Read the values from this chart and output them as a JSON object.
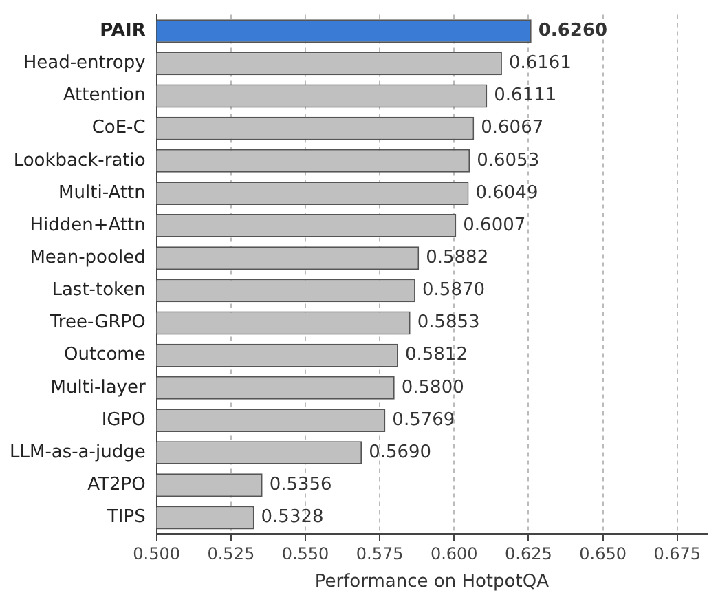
{
  "chart_data": {
    "type": "bar",
    "orientation": "horizontal",
    "xlabel": "Performance on HotpotQA",
    "categories": [
      "PAIR",
      "Head-entropy",
      "Attention",
      "CoE-C",
      "Lookback-ratio",
      "Multi-Attn",
      "Hidden+Attn",
      "Mean-pooled",
      "Last-token",
      "Tree-GRPO",
      "Outcome",
      "Multi-layer",
      "IGPO",
      "LLM-as-a-judge",
      "AT2PO",
      "TIPS"
    ],
    "values": [
      0.626,
      0.6161,
      0.6111,
      0.6067,
      0.6053,
      0.6049,
      0.6007,
      0.5882,
      0.587,
      0.5853,
      0.5812,
      0.58,
      0.5769,
      0.569,
      0.5356,
      0.5328
    ],
    "value_labels": [
      "0.6260",
      "0.6161",
      "0.6111",
      "0.6067",
      "0.6053",
      "0.6049",
      "0.6007",
      "0.5882",
      "0.5870",
      "0.5853",
      "0.5812",
      "0.5800",
      "0.5769",
      "0.5690",
      "0.5356",
      "0.5328"
    ],
    "colors": [
      "#3a7bd5",
      "#c0c0c0",
      "#c0c0c0",
      "#c0c0c0",
      "#c0c0c0",
      "#c0c0c0",
      "#c0c0c0",
      "#c0c0c0",
      "#c0c0c0",
      "#c0c0c0",
      "#c0c0c0",
      "#c0c0c0",
      "#c0c0c0",
      "#c0c0c0",
      "#c0c0c0",
      "#c0c0c0"
    ],
    "xlim": [
      0.5,
      0.685
    ],
    "xticks": [
      {
        "value": 0.5,
        "label": "0.500"
      },
      {
        "value": 0.525,
        "label": "0.525"
      },
      {
        "value": 0.55,
        "label": "0.550"
      },
      {
        "value": 0.575,
        "label": "0.575"
      },
      {
        "value": 0.6,
        "label": "0.600"
      },
      {
        "value": 0.625,
        "label": "0.625"
      },
      {
        "value": 0.65,
        "label": "0.650"
      },
      {
        "value": 0.675,
        "label": "0.675"
      }
    ],
    "grid": "x"
  }
}
